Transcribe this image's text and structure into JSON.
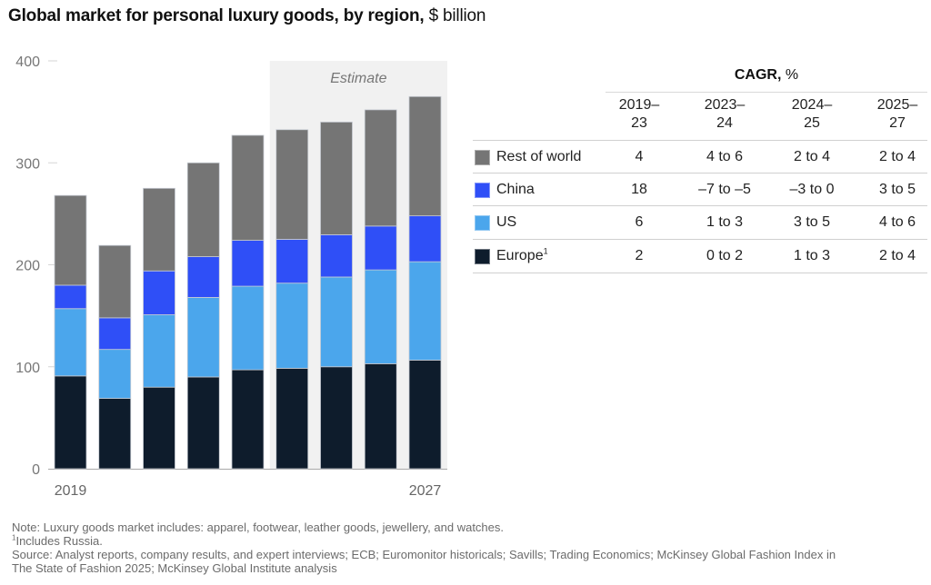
{
  "title": {
    "bold": "Global market for personal luxury goods, by region,",
    "unit": "$ billion"
  },
  "chart_data": {
    "type": "bar",
    "stacked": true,
    "title": "Global market for personal luxury goods, by region, $ billion",
    "xlabel": "",
    "ylabel": "$ billion",
    "ylim": [
      0,
      400
    ],
    "yticks": [
      0,
      100,
      200,
      300,
      400
    ],
    "ytick_labels": [
      "0",
      "100",
      "200",
      "300",
      "400"
    ],
    "categories": [
      "2019",
      "2020",
      "2021",
      "2022",
      "2023",
      "2024",
      "2025",
      "2026",
      "2027"
    ],
    "visible_xtick_labels": {
      "0": "2019",
      "8": "2027"
    },
    "shaded_region": {
      "label": "Estimate",
      "from_index": 5,
      "to_index": 8
    },
    "grid": false,
    "legend": "right (in table)",
    "series": [
      {
        "name": "Europe",
        "color": "#0e1c2c",
        "values": [
          91,
          69,
          80,
          90,
          97,
          98.5,
          100,
          103,
          106.5
        ]
      },
      {
        "name": "US",
        "color": "#4ba6ec",
        "values": [
          66,
          48,
          71,
          78,
          82,
          83.5,
          88,
          92,
          96.5
        ]
      },
      {
        "name": "China",
        "color": "#2f4ff7",
        "values": [
          23,
          31,
          43,
          40,
          45,
          43,
          41.5,
          43,
          45
        ]
      },
      {
        "name": "Rest of world",
        "color": "#757575",
        "values": [
          88,
          71,
          81,
          92,
          103,
          107.5,
          110.5,
          114,
          117
        ]
      }
    ],
    "totals": [
      268,
      219,
      275,
      300,
      327,
      332,
      340,
      352,
      365
    ]
  },
  "table": {
    "title_bold": "CAGR,",
    "title_unit": "%",
    "columns": [
      {
        "line1": "2019–",
        "line2": "23"
      },
      {
        "line1": "2023–",
        "line2": "24"
      },
      {
        "line1": "2024–",
        "line2": "25"
      },
      {
        "line1": "2025–",
        "line2": "27"
      }
    ],
    "rows": [
      {
        "label": "Rest of world",
        "sup": "",
        "color": "#757575",
        "values": [
          "4",
          "4 to 6",
          "2 to 4",
          "2 to 4"
        ]
      },
      {
        "label": "China",
        "sup": "",
        "color": "#2f4ff7",
        "values": [
          "18",
          "–7 to –5",
          "–3 to 0",
          "3 to 5"
        ]
      },
      {
        "label": "US",
        "sup": "",
        "color": "#4ba6ec",
        "values": [
          "6",
          "1 to 3",
          "3 to 5",
          "4 to 6"
        ]
      },
      {
        "label": "Europe",
        "sup": "1",
        "color": "#0e1c2c",
        "values": [
          "2",
          "0 to 2",
          "1 to 3",
          "2 to 4"
        ]
      }
    ]
  },
  "notes": {
    "note": "Note: Luxury goods market includes: apparel, footwear, leather goods, jewellery, and watches.",
    "footnote_mark": "1",
    "footnote": "Includes Russia.",
    "source_line1": "Source: Analyst reports, company results, and expert interviews; ECB; Euromonitor historicals; Savills; Trading Economics; McKinsey Global Fashion Index in",
    "source_line2": "The State of Fashion 2025; McKinsey Global Institute analysis"
  }
}
